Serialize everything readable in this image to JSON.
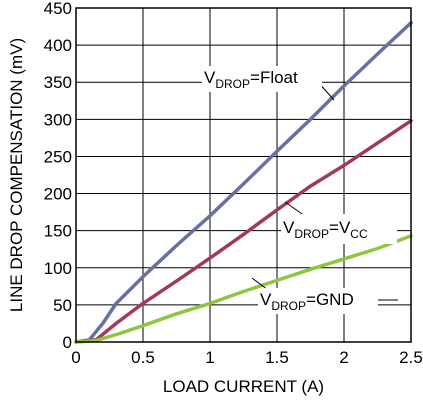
{
  "chart_data": {
    "type": "line",
    "xlabel": "LOAD CURRENT (A)",
    "ylabel": "LINE DROP COMPENSATION (mV)",
    "xlim": [
      0,
      2.5
    ],
    "ylim": [
      0,
      450
    ],
    "x_ticks": [
      "0",
      "0.5",
      "1",
      "1.5",
      "2",
      "2.5"
    ],
    "y_ticks": [
      "0",
      "50",
      "100",
      "150",
      "200",
      "250",
      "300",
      "350",
      "400",
      "450"
    ],
    "x_tick_values": [
      0,
      0.5,
      1,
      1.5,
      2,
      2.5
    ],
    "y_tick_values": [
      0,
      50,
      100,
      150,
      200,
      250,
      300,
      350,
      400,
      450
    ],
    "grid": true,
    "series": [
      {
        "name": "Float",
        "color": "#6670a3",
        "points": [
          [
            0,
            0
          ],
          [
            0.1,
            3
          ],
          [
            0.2,
            25
          ],
          [
            0.3,
            52
          ],
          [
            0.5,
            88
          ],
          [
            0.75,
            130
          ],
          [
            1.0,
            170
          ],
          [
            1.25,
            213
          ],
          [
            1.5,
            257
          ],
          [
            1.75,
            300
          ],
          [
            2.0,
            345
          ],
          [
            2.25,
            388
          ],
          [
            2.5,
            430
          ]
        ]
      },
      {
        "name": "VCC",
        "color": "#a3385e",
        "points": [
          [
            0,
            0
          ],
          [
            0.15,
            3
          ],
          [
            0.3,
            25
          ],
          [
            0.5,
            52
          ],
          [
            0.75,
            82
          ],
          [
            1.0,
            113
          ],
          [
            1.25,
            145
          ],
          [
            1.5,
            178
          ],
          [
            1.75,
            210
          ],
          [
            2.0,
            238
          ],
          [
            2.25,
            268
          ],
          [
            2.5,
            298
          ]
        ]
      },
      {
        "name": "GND",
        "color": "#8ec63f",
        "points": [
          [
            0,
            0
          ],
          [
            0.15,
            2
          ],
          [
            0.3,
            10
          ],
          [
            0.5,
            22
          ],
          [
            0.75,
            38
          ],
          [
            1.0,
            52
          ],
          [
            1.25,
            68
          ],
          [
            1.5,
            83
          ],
          [
            1.75,
            98
          ],
          [
            2.0,
            112
          ],
          [
            2.25,
            126
          ],
          [
            2.5,
            143
          ]
        ]
      }
    ],
    "annotations": [
      {
        "main": "V",
        "sub": "DROP",
        "rest": "=Float",
        "series": "Float"
      },
      {
        "main": "V",
        "sub": "DROP",
        "mid": "=V",
        "sub2": "CC",
        "series": "VCC"
      },
      {
        "main": "V",
        "sub": "DROP",
        "rest": "=GND",
        "series": "GND"
      }
    ]
  }
}
